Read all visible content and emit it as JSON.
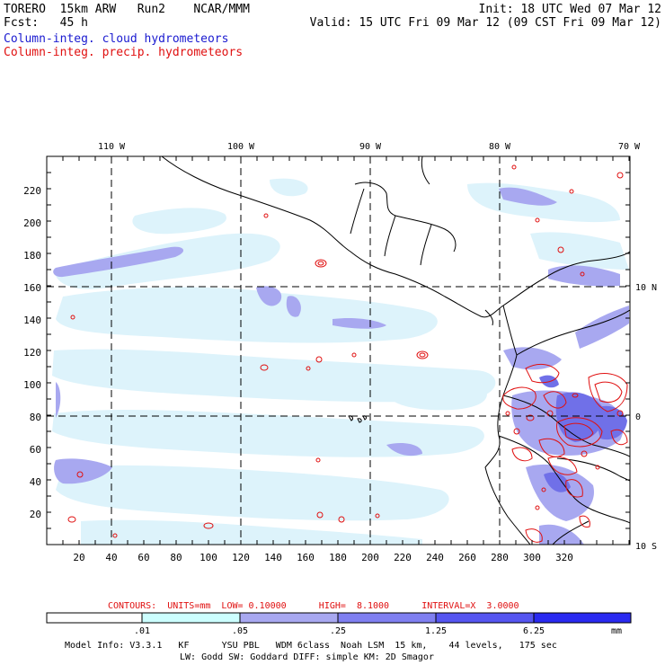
{
  "header": {
    "model_run": "TORERO  15km ARW   Run2    NCAR/MMM",
    "init": "Init: 18 UTC Wed 07 Mar 12",
    "forecast": "Fcst:   45 h",
    "valid": "Valid: 15 UTC Fri 09 Mar 12 (09 CST Fri 09 Mar 12)",
    "field_cloud": "Column-integ. cloud hydrometeors",
    "field_precip": "Column-integ. precip. hydrometeors"
  },
  "map": {
    "lon_labels": [
      "110 W",
      "100 W",
      "90 W",
      "80 W",
      "70 W"
    ],
    "lat_labels": [
      "10 N",
      "0",
      "10 S"
    ],
    "grid_x_labels": [
      "20",
      "40",
      "60",
      "80",
      "100",
      "120",
      "140",
      "160",
      "180",
      "200",
      "220",
      "240",
      "260",
      "280",
      "300",
      "320"
    ],
    "grid_y_labels": [
      "20",
      "40",
      "60",
      "80",
      "100",
      "120",
      "140",
      "160",
      "180",
      "200",
      "220"
    ]
  },
  "contours": {
    "label": "CONTOURS:  UNITS=mm  LOW= 0.10000      HIGH=  8.1000      INTERVAL=X  3.0000",
    "color": "#e01010"
  },
  "colorbar": {
    "ticks": [
      ".01",
      ".05",
      ".25",
      "1.25",
      "6.25"
    ],
    "unit": "mm",
    "colors": [
      "#ffffff",
      "#ccffff",
      "#a8a8f0",
      "#7f7ff0",
      "#5555f0",
      "#2a2af0"
    ]
  },
  "footer": {
    "line1": "Model Info: V3.3.1   KF      YSU PBL   WDM 6class  Noah LSM  15 km,    44 levels,   175 sec",
    "line2": "LW: Godd SW: Goddard DIFF: simple KM: 2D Smagor"
  },
  "colors": {
    "cloud_light": "#ddf3fb",
    "cloud_mid": "#a8a8f0",
    "cloud_dark": "#7070e8",
    "precip": "#e01010"
  }
}
